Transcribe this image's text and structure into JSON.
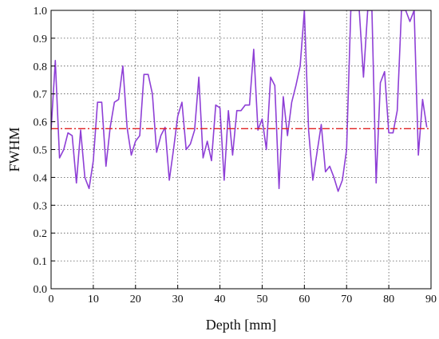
{
  "chart_data": {
    "type": "line",
    "xlabel": "Depth [mm]",
    "ylabel": "FWHM",
    "xlim": [
      0,
      90
    ],
    "ylim": [
      0,
      1.0
    ],
    "xticks": [
      0,
      10,
      20,
      30,
      40,
      50,
      60,
      70,
      80,
      90
    ],
    "yticks": [
      0.0,
      0.1,
      0.2,
      0.3,
      0.4,
      0.5,
      0.6,
      0.7,
      0.8,
      0.9,
      1.0
    ],
    "xtick_labels": [
      "0",
      "10",
      "20",
      "30",
      "40",
      "50",
      "60",
      "70",
      "80",
      "90"
    ],
    "ytick_labels": [
      "0.0",
      "0.1",
      "0.2",
      "0.3",
      "0.4",
      "0.5",
      "0.6",
      "0.7",
      "0.8",
      "0.9",
      "1.0"
    ],
    "grid": true,
    "series": [
      {
        "color": "#8e3fd6",
        "style": "solid",
        "x": [
          0,
          1,
          2,
          3,
          4,
          5,
          6,
          7,
          8,
          9,
          10,
          11,
          12,
          13,
          14,
          15,
          16,
          17,
          18,
          19,
          20,
          21,
          22,
          23,
          24,
          25,
          26,
          27,
          28,
          29,
          30,
          31,
          32,
          33,
          34,
          35,
          36,
          37,
          38,
          39,
          40,
          41,
          42,
          43,
          44,
          45,
          46,
          47,
          48,
          49,
          50,
          51,
          52,
          53,
          54,
          55,
          56,
          57,
          58,
          59,
          60,
          61,
          62,
          63,
          64,
          65,
          66,
          67,
          68,
          69,
          70,
          71,
          72,
          73,
          74,
          75,
          76,
          77,
          78,
          79,
          80,
          81,
          82,
          83,
          84,
          85,
          86,
          87,
          88,
          89
        ],
        "y": [
          0.57,
          0.82,
          0.47,
          0.5,
          0.56,
          0.55,
          0.38,
          0.57,
          0.4,
          0.36,
          0.46,
          0.67,
          0.67,
          0.44,
          0.58,
          0.67,
          0.68,
          0.8,
          0.58,
          0.48,
          0.53,
          0.55,
          0.77,
          0.77,
          0.7,
          0.49,
          0.55,
          0.58,
          0.39,
          0.5,
          0.62,
          0.67,
          0.5,
          0.52,
          0.57,
          0.76,
          0.47,
          0.53,
          0.46,
          0.66,
          0.65,
          0.39,
          0.64,
          0.48,
          0.64,
          0.64,
          0.66,
          0.66,
          0.86,
          0.57,
          0.61,
          0.5,
          0.76,
          0.73,
          0.36,
          0.69,
          0.55,
          0.67,
          0.73,
          0.8,
          1.0,
          0.57,
          0.39,
          0.49,
          0.59,
          0.42,
          0.44,
          0.4,
          0.35,
          0.39,
          0.5,
          1.0,
          1.0,
          1.0,
          0.76,
          1.0,
          1.0,
          0.38,
          0.74,
          0.78,
          0.56,
          0.56,
          0.64,
          1.0,
          1.0,
          0.96,
          1.0,
          0.48,
          0.68,
          0.58
        ]
      },
      {
        "color": "#e02020",
        "style": "dash-dot",
        "x": [
          0,
          90
        ],
        "y": [
          0.575,
          0.575
        ]
      }
    ]
  }
}
